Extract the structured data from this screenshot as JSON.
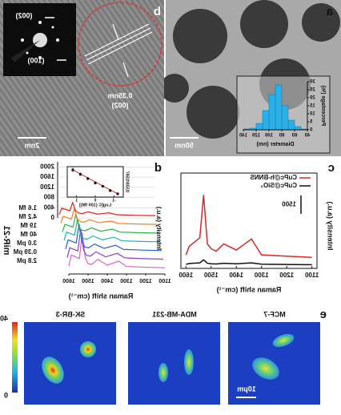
{
  "figure": {
    "panel_labels": [
      "a",
      "b",
      "c",
      "d",
      "e"
    ],
    "a": {
      "scale_bar": "50nm"
    },
    "b": {
      "spot_labels": [
        "(002)",
        "(100)"
      ],
      "spacing": "0.35nm",
      "plane": "(002)",
      "scale_bar": "2nm"
    },
    "e": {
      "cells": [
        "MCF-7",
        "MDA-MB-231",
        "SK-BR-3"
      ],
      "scale_bar": "10μm",
      "colorbar": {
        "min": 0,
        "max": 40
      }
    }
  },
  "chart_data": [
    {
      "type": "histogram",
      "x_label": "Diameter (nm)",
      "y_label": "Percentage (%)",
      "bins": [
        40,
        50,
        60,
        70,
        80,
        90,
        100,
        110,
        120,
        130,
        140
      ],
      "values": [
        0.5,
        2,
        6,
        15,
        28,
        22,
        12,
        4,
        1,
        0.5
      ],
      "color": "#2ab0e6",
      "xlim": [
        40,
        140
      ],
      "xticks": [
        40,
        60,
        80,
        100,
        120,
        140
      ],
      "ylim": [
        0,
        30
      ],
      "yticks": [
        0,
        5,
        10,
        15,
        20,
        25,
        30
      ]
    },
    {
      "type": "line",
      "x_label": "Raman shift (cm⁻¹)",
      "y_label": "Intensity (a.u.)",
      "x": [
        1100,
        1200,
        1300,
        1340,
        1400,
        1450,
        1480,
        1500,
        1515,
        1530,
        1545,
        1587,
        1600
      ],
      "series": [
        {
          "name": "CuPc@SiO₂",
          "color": "#111111",
          "values": [
            300,
            320,
            340,
            450,
            380,
            420,
            360,
            380,
            420,
            700,
            450,
            400,
            330
          ]
        },
        {
          "name": "CuPc@h-BNNS",
          "color": "#d42a2a",
          "values": [
            900,
            1000,
            1100,
            2400,
            1500,
            2000,
            1400,
            1600,
            2000,
            6000,
            2500,
            1800,
            1100
          ]
        }
      ],
      "xlim": [
        1080,
        1620
      ],
      "xticks": [
        1100,
        1200,
        1300,
        1400,
        1500,
        1600
      ],
      "ylim": [
        0,
        7000
      ],
      "scale_bar": 1500
    },
    {
      "type": "waterfall",
      "x_label": "Raman shift (cm⁻¹)",
      "y_label": "Intensity (a.u.)",
      "legend_title": "miR-21",
      "x": [
        1100,
        1200,
        1300,
        1340,
        1400,
        1450,
        1480,
        1500,
        1515,
        1530,
        1545,
        1587,
        1600
      ],
      "series": [
        {
          "name": "2.8 pM",
          "color": "#e060c0",
          "values": [
            120,
            140,
            170,
            380,
            220,
            450,
            250,
            280,
            520,
            1500,
            480,
            620,
            180
          ]
        },
        {
          "name": "0.39 pM",
          "color": "#8a3fd0",
          "values": [
            110,
            130,
            160,
            340,
            200,
            400,
            230,
            260,
            470,
            1300,
            430,
            560,
            170
          ]
        },
        {
          "name": "3.0 pM",
          "color": "#2060e0",
          "values": [
            100,
            120,
            150,
            310,
            190,
            360,
            210,
            240,
            430,
            1150,
            400,
            520,
            160
          ]
        },
        {
          "name": "40 fM",
          "color": "#20b0c0",
          "values": [
            100,
            115,
            140,
            280,
            180,
            330,
            200,
            230,
            390,
            1000,
            360,
            480,
            150
          ]
        },
        {
          "name": "19 fM",
          "color": "#30b040",
          "values": [
            95,
            110,
            135,
            250,
            170,
            300,
            190,
            210,
            350,
            850,
            330,
            440,
            145
          ]
        },
        {
          "name": "4.2 fM",
          "color": "#f08020",
          "values": [
            90,
            105,
            130,
            220,
            160,
            270,
            180,
            200,
            320,
            700,
            300,
            410,
            140
          ]
        },
        {
          "name": "1.6 fM",
          "color": "#e02020",
          "values": [
            90,
            100,
            125,
            200,
            150,
            240,
            170,
            190,
            290,
            600,
            280,
            380,
            135
          ]
        }
      ],
      "xlim": [
        1100,
        1600
      ],
      "xticks": [
        1100,
        1200,
        1300,
        1400,
        1500,
        1600
      ],
      "ylim": [
        0,
        2200
      ],
      "yticks": [
        0,
        400,
        800,
        1200,
        1600,
        2000
      ]
    },
    {
      "type": "scatter",
      "x_label": "Log[C (100 fM)]",
      "y_label": "I1530/I1587",
      "x": [
        -1.2,
        -0.8,
        -0.4,
        0,
        0.4,
        0.8,
        1.2
      ],
      "values": [
        1.05,
        1.2,
        1.4,
        1.55,
        1.75,
        1.95,
        2.15
      ],
      "errors": [
        0.05,
        0.06,
        0.05,
        0.07,
        0.06,
        0.08,
        0.1
      ],
      "color": "#111111",
      "fit_color": "#d42a2a",
      "xlim": [
        -1.5,
        1.5
      ],
      "xticks": [
        -1,
        0,
        1
      ],
      "ylim": [
        0.9,
        2.3
      ]
    }
  ]
}
